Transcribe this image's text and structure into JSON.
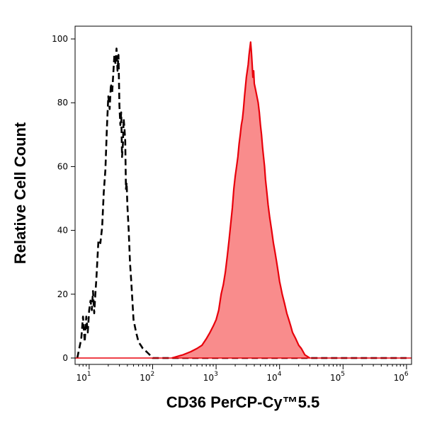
{
  "chart_data": {
    "type": "area",
    "title": "",
    "xlabel": "CD36 PerCP-Cy™5.5",
    "ylabel": "Relative Cell Count",
    "x_scale": "log",
    "xlim": [
      6,
      1200000
    ],
    "ylim": [
      -2,
      104
    ],
    "x_ticks": [
      {
        "base": "10",
        "exp": "1",
        "value": 10
      },
      {
        "base": "10",
        "exp": "2",
        "value": 100
      },
      {
        "base": "10",
        "exp": "3",
        "value": 1000
      },
      {
        "base": "10",
        "exp": "4",
        "value": 10000
      },
      {
        "base": "10",
        "exp": "5",
        "value": 100000
      },
      {
        "base": "10",
        "exp": "6",
        "value": 1000000
      }
    ],
    "y_ticks": [
      {
        "label": "0",
        "value": 0
      },
      {
        "label": "20",
        "value": 20
      },
      {
        "label": "40",
        "value": 40
      },
      {
        "label": "60",
        "value": 60
      },
      {
        "label": "80",
        "value": 80
      },
      {
        "label": "100",
        "value": 100
      }
    ],
    "grid": false,
    "series": [
      {
        "style": "dashed",
        "color": "#000000",
        "points": [
          [
            6.5,
            0
          ],
          [
            7.5,
            6
          ],
          [
            8,
            13
          ],
          [
            8.5,
            5
          ],
          [
            9,
            13
          ],
          [
            9.5,
            8
          ],
          [
            10,
            15
          ],
          [
            10.5,
            18
          ],
          [
            11,
            15
          ],
          [
            11.5,
            21
          ],
          [
            12,
            14
          ],
          [
            12.5,
            20
          ],
          [
            13,
            25
          ],
          [
            14,
            37
          ],
          [
            15,
            36
          ],
          [
            16,
            41
          ],
          [
            17,
            52
          ],
          [
            18,
            59
          ],
          [
            19,
            72
          ],
          [
            20,
            82
          ],
          [
            21,
            78
          ],
          [
            22,
            86
          ],
          [
            23,
            83
          ],
          [
            24,
            89
          ],
          [
            25,
            95
          ],
          [
            26,
            92
          ],
          [
            27,
            97
          ],
          [
            28,
            90
          ],
          [
            29,
            95
          ],
          [
            30,
            79
          ],
          [
            31,
            73
          ],
          [
            32,
            77
          ],
          [
            33,
            63
          ],
          [
            34,
            67
          ],
          [
            35,
            75
          ],
          [
            36,
            72
          ],
          [
            37,
            68
          ],
          [
            38,
            53
          ],
          [
            39,
            55
          ],
          [
            40,
            48
          ],
          [
            42,
            40
          ],
          [
            44,
            30
          ],
          [
            46,
            24
          ],
          [
            48,
            18
          ],
          [
            50,
            12
          ],
          [
            55,
            8
          ],
          [
            60,
            5
          ],
          [
            65,
            4
          ],
          [
            70,
            3
          ],
          [
            80,
            2
          ],
          [
            90,
            1
          ],
          [
            100,
            0
          ],
          [
            120,
            0
          ],
          [
            1000000,
            0
          ]
        ]
      },
      {
        "style": "filled",
        "color": "#e8000b",
        "fill": "#f98c8c",
        "points": [
          [
            200,
            0
          ],
          [
            300,
            1
          ],
          [
            400,
            2
          ],
          [
            500,
            3
          ],
          [
            600,
            4
          ],
          [
            700,
            6
          ],
          [
            800,
            8
          ],
          [
            900,
            10
          ],
          [
            1000,
            12
          ],
          [
            1100,
            15
          ],
          [
            1200,
            20
          ],
          [
            1300,
            23
          ],
          [
            1400,
            27
          ],
          [
            1500,
            32
          ],
          [
            1600,
            37
          ],
          [
            1700,
            42
          ],
          [
            1800,
            47
          ],
          [
            1900,
            53
          ],
          [
            2000,
            57
          ],
          [
            2100,
            60
          ],
          [
            2200,
            63
          ],
          [
            2300,
            67
          ],
          [
            2400,
            70
          ],
          [
            2500,
            73
          ],
          [
            2600,
            75
          ],
          [
            2700,
            78
          ],
          [
            2800,
            82
          ],
          [
            2900,
            85
          ],
          [
            3000,
            88
          ],
          [
            3100,
            90
          ],
          [
            3200,
            92
          ],
          [
            3300,
            95
          ],
          [
            3400,
            97
          ],
          [
            3500,
            99
          ],
          [
            3600,
            96
          ],
          [
            3700,
            92
          ],
          [
            3800,
            88
          ],
          [
            3900,
            90
          ],
          [
            4000,
            86
          ],
          [
            4200,
            84
          ],
          [
            4400,
            82
          ],
          [
            4600,
            80
          ],
          [
            4800,
            77
          ],
          [
            5000,
            73
          ],
          [
            5200,
            70
          ],
          [
            5400,
            66
          ],
          [
            5600,
            63
          ],
          [
            5800,
            60
          ],
          [
            6000,
            56
          ],
          [
            6300,
            52
          ],
          [
            6600,
            48
          ],
          [
            7000,
            44
          ],
          [
            7500,
            40
          ],
          [
            8000,
            36
          ],
          [
            8500,
            33
          ],
          [
            9000,
            30
          ],
          [
            9500,
            27
          ],
          [
            10000,
            24
          ],
          [
            10500,
            22
          ],
          [
            11000,
            20
          ],
          [
            12000,
            17
          ],
          [
            13000,
            14
          ],
          [
            14000,
            12
          ],
          [
            15000,
            10
          ],
          [
            16000,
            8
          ],
          [
            18000,
            6
          ],
          [
            20000,
            4
          ],
          [
            22000,
            3
          ],
          [
            25000,
            1
          ],
          [
            30000,
            0
          ]
        ]
      }
    ]
  }
}
